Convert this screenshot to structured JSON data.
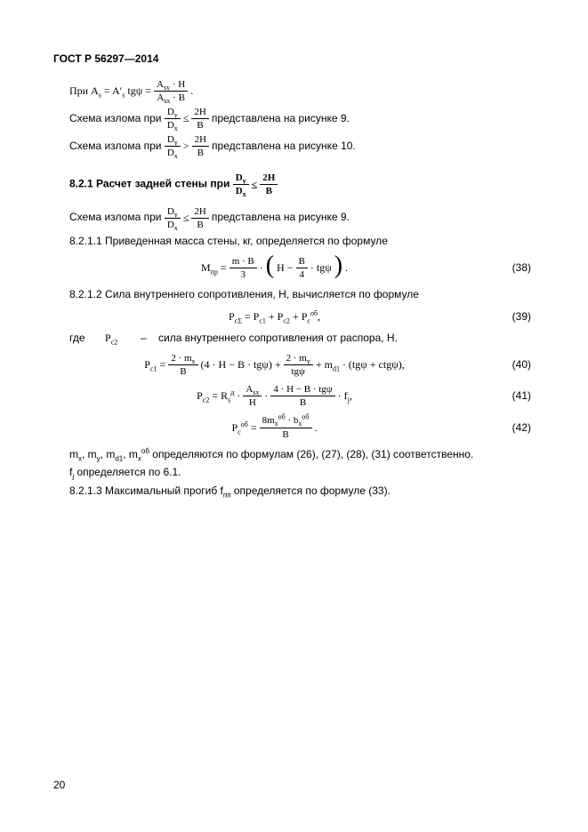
{
  "header": "ГОСТ Р 56297—2014",
  "p1_prefix": "При  ",
  "p1_lhs_A": "A",
  "p1_eq1": " = A′",
  "p1_tg": "  tgψ = ",
  "p1_frac1_num": "A<sub>sy</sub> · H",
  "p1_frac1_den": "A<sub>sx</sub> · B",
  "p1_suffix": ".",
  "p2_prefix": "Схема излома при  ",
  "p2_frac_num": "D<sub>y</sub>",
  "p2_frac_den": "D<sub>x</sub>",
  "p2_op": " ≤ ",
  "p2_frac2_num": "2H",
  "p2_frac2_den": "B",
  "p2_suffix": " представлена на рисунке 9.",
  "p3_prefix": "Схема излома при  ",
  "p3_op": " > ",
  "p3_suffix": " представлена на рисунке 10.",
  "subsec_label": "8.2.1 Расчет задней стены при ",
  "subsec_frac_num": "D<sub>y</sub>",
  "subsec_frac_den": "D<sub>x</sub>",
  "subsec_op": " ≤ ",
  "subsec_frac2_num": "2H",
  "subsec_frac2_den": "B",
  "p4_suffix": " представлена на рисунке 9.",
  "p5": "8.2.1.1 Приведенная масса стены, кг, определяется по формуле",
  "eq38_lhs": "M<sub>пр</sub> = ",
  "eq38_f1_num": "m · B",
  "eq38_f1_den": "3",
  "eq38_mid": " · ",
  "eq38_inner_pre": " H − ",
  "eq38_f2_num": "B",
  "eq38_f2_den": "4",
  "eq38_inner_post": " · tgψ ",
  "eq38_suffix": ".",
  "eq38_num": "(38)",
  "p6": "8.2.1.2 Сила внутреннего сопротивления, Н, вычисляется по формуле",
  "eq39": "P<sub>cΣ</sub> = P<sub>c1</sub> + P<sub>c2</sub> + P<sub>c</sub><sup>об</sup>,",
  "eq39_num": "(39)",
  "where_lbl": "где",
  "where_sym": "P<sub>c2</sub>",
  "where_txt": "сила внутреннего сопротивления от распора, Н.",
  "eq40_lhs": "P<sub>c1</sub> = ",
  "eq40_f1_num": "2 · m<sub>x</sub>",
  "eq40_f1_den": "B",
  "eq40_mid1": " (4 · H − B · tgψ) + ",
  "eq40_f2_num": "2 · m<sub>y</sub>",
  "eq40_f2_den": "tgψ",
  "eq40_mid2": " + m<sub>d1</sub> · (tgψ + ctgψ),",
  "eq40_num": "(40)",
  "eq41_lhs": "P<sub>c2</sub> = R<sub>s</sub><sup>д</sup> · ",
  "eq41_f1_num": "A<sub>sx</sub>",
  "eq41_f1_den": "H",
  "eq41_mid": " · ",
  "eq41_f2_num": "4 · H − B · tgψ",
  "eq41_f2_den": "B",
  "eq41_suffix": " · f<sub>j</sub>,",
  "eq41_num": "(41)",
  "eq42_lhs": "P<sub>c</sub><sup>об</sup> = ",
  "eq42_num_f": "8m<sub>x</sub><sup>об</sup> · b<sub>x</sub><sup>об</sup>",
  "eq42_den_f": "B",
  "eq42_suffix": ".",
  "eq42_num": "(42)",
  "p7": "m<sub>x</sub>, m<sub>y</sub>, m<sub>d1</sub>, m<sub>x</sub><sup>об</sup> определяются по формулам (26), (27), (28), (31) соответственно.",
  "p8": "f<sub>j</sub> определяется по 6.1.",
  "p9": "8.2.1.3 Максимальный прогиб f<sub>пп</sub> определяется по формуле (33).",
  "pagenum": "20"
}
